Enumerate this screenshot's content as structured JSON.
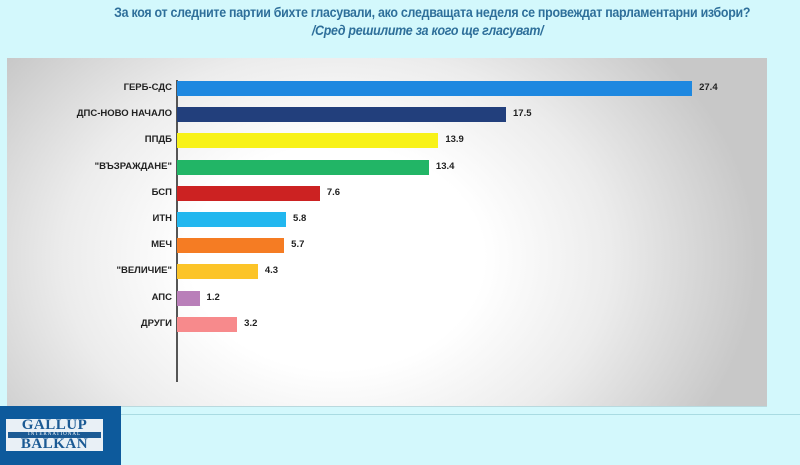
{
  "title": {
    "line1": "За коя от следните партии бихте  гласували,  ако следващата неделя се провеждат парламентарни избори?",
    "line2": "/Сред решилите за кого ще гласуват/"
  },
  "logo": {
    "line1": "GALLUP",
    "line2": "INTERNATIONAL",
    "line3": "BALKAN"
  },
  "chart_data": {
    "type": "bar",
    "orientation": "horizontal",
    "title": "За коя от следните партии бихте  гласували,  ако следващата неделя се провеждат парламентарни избори?",
    "subtitle": "/Сред решилите за кого ще гласуват/",
    "xlabel": "",
    "ylabel": "",
    "grid": false,
    "legend": null,
    "categories": [
      "ГЕРБ-СДС",
      "ДПС-НОВО НАЧАЛО",
      "ППДБ",
      "\"ВЪЗРАЖДАНЕ\"",
      "БСП",
      "ИТН",
      "МЕЧ",
      "\"ВЕЛИЧИЕ\"",
      "АПС",
      "ДРУГИ"
    ],
    "values": [
      27.4,
      17.5,
      13.9,
      13.4,
      7.6,
      5.8,
      5.7,
      4.3,
      1.2,
      3.2
    ],
    "value_labels": [
      "27.4",
      "17.5",
      "13.9",
      "13.4",
      "7.6",
      "5.8",
      "5.7",
      "4.3",
      "1.2",
      "3.2"
    ],
    "colors": [
      "#1e88e0",
      "#223f7c",
      "#f8f219",
      "#22b566",
      "#cc2222",
      "#22b7ef",
      "#f57c23",
      "#fcc428",
      "#b97fb9",
      "#f78a8c"
    ],
    "xlim": [
      0,
      30
    ]
  }
}
